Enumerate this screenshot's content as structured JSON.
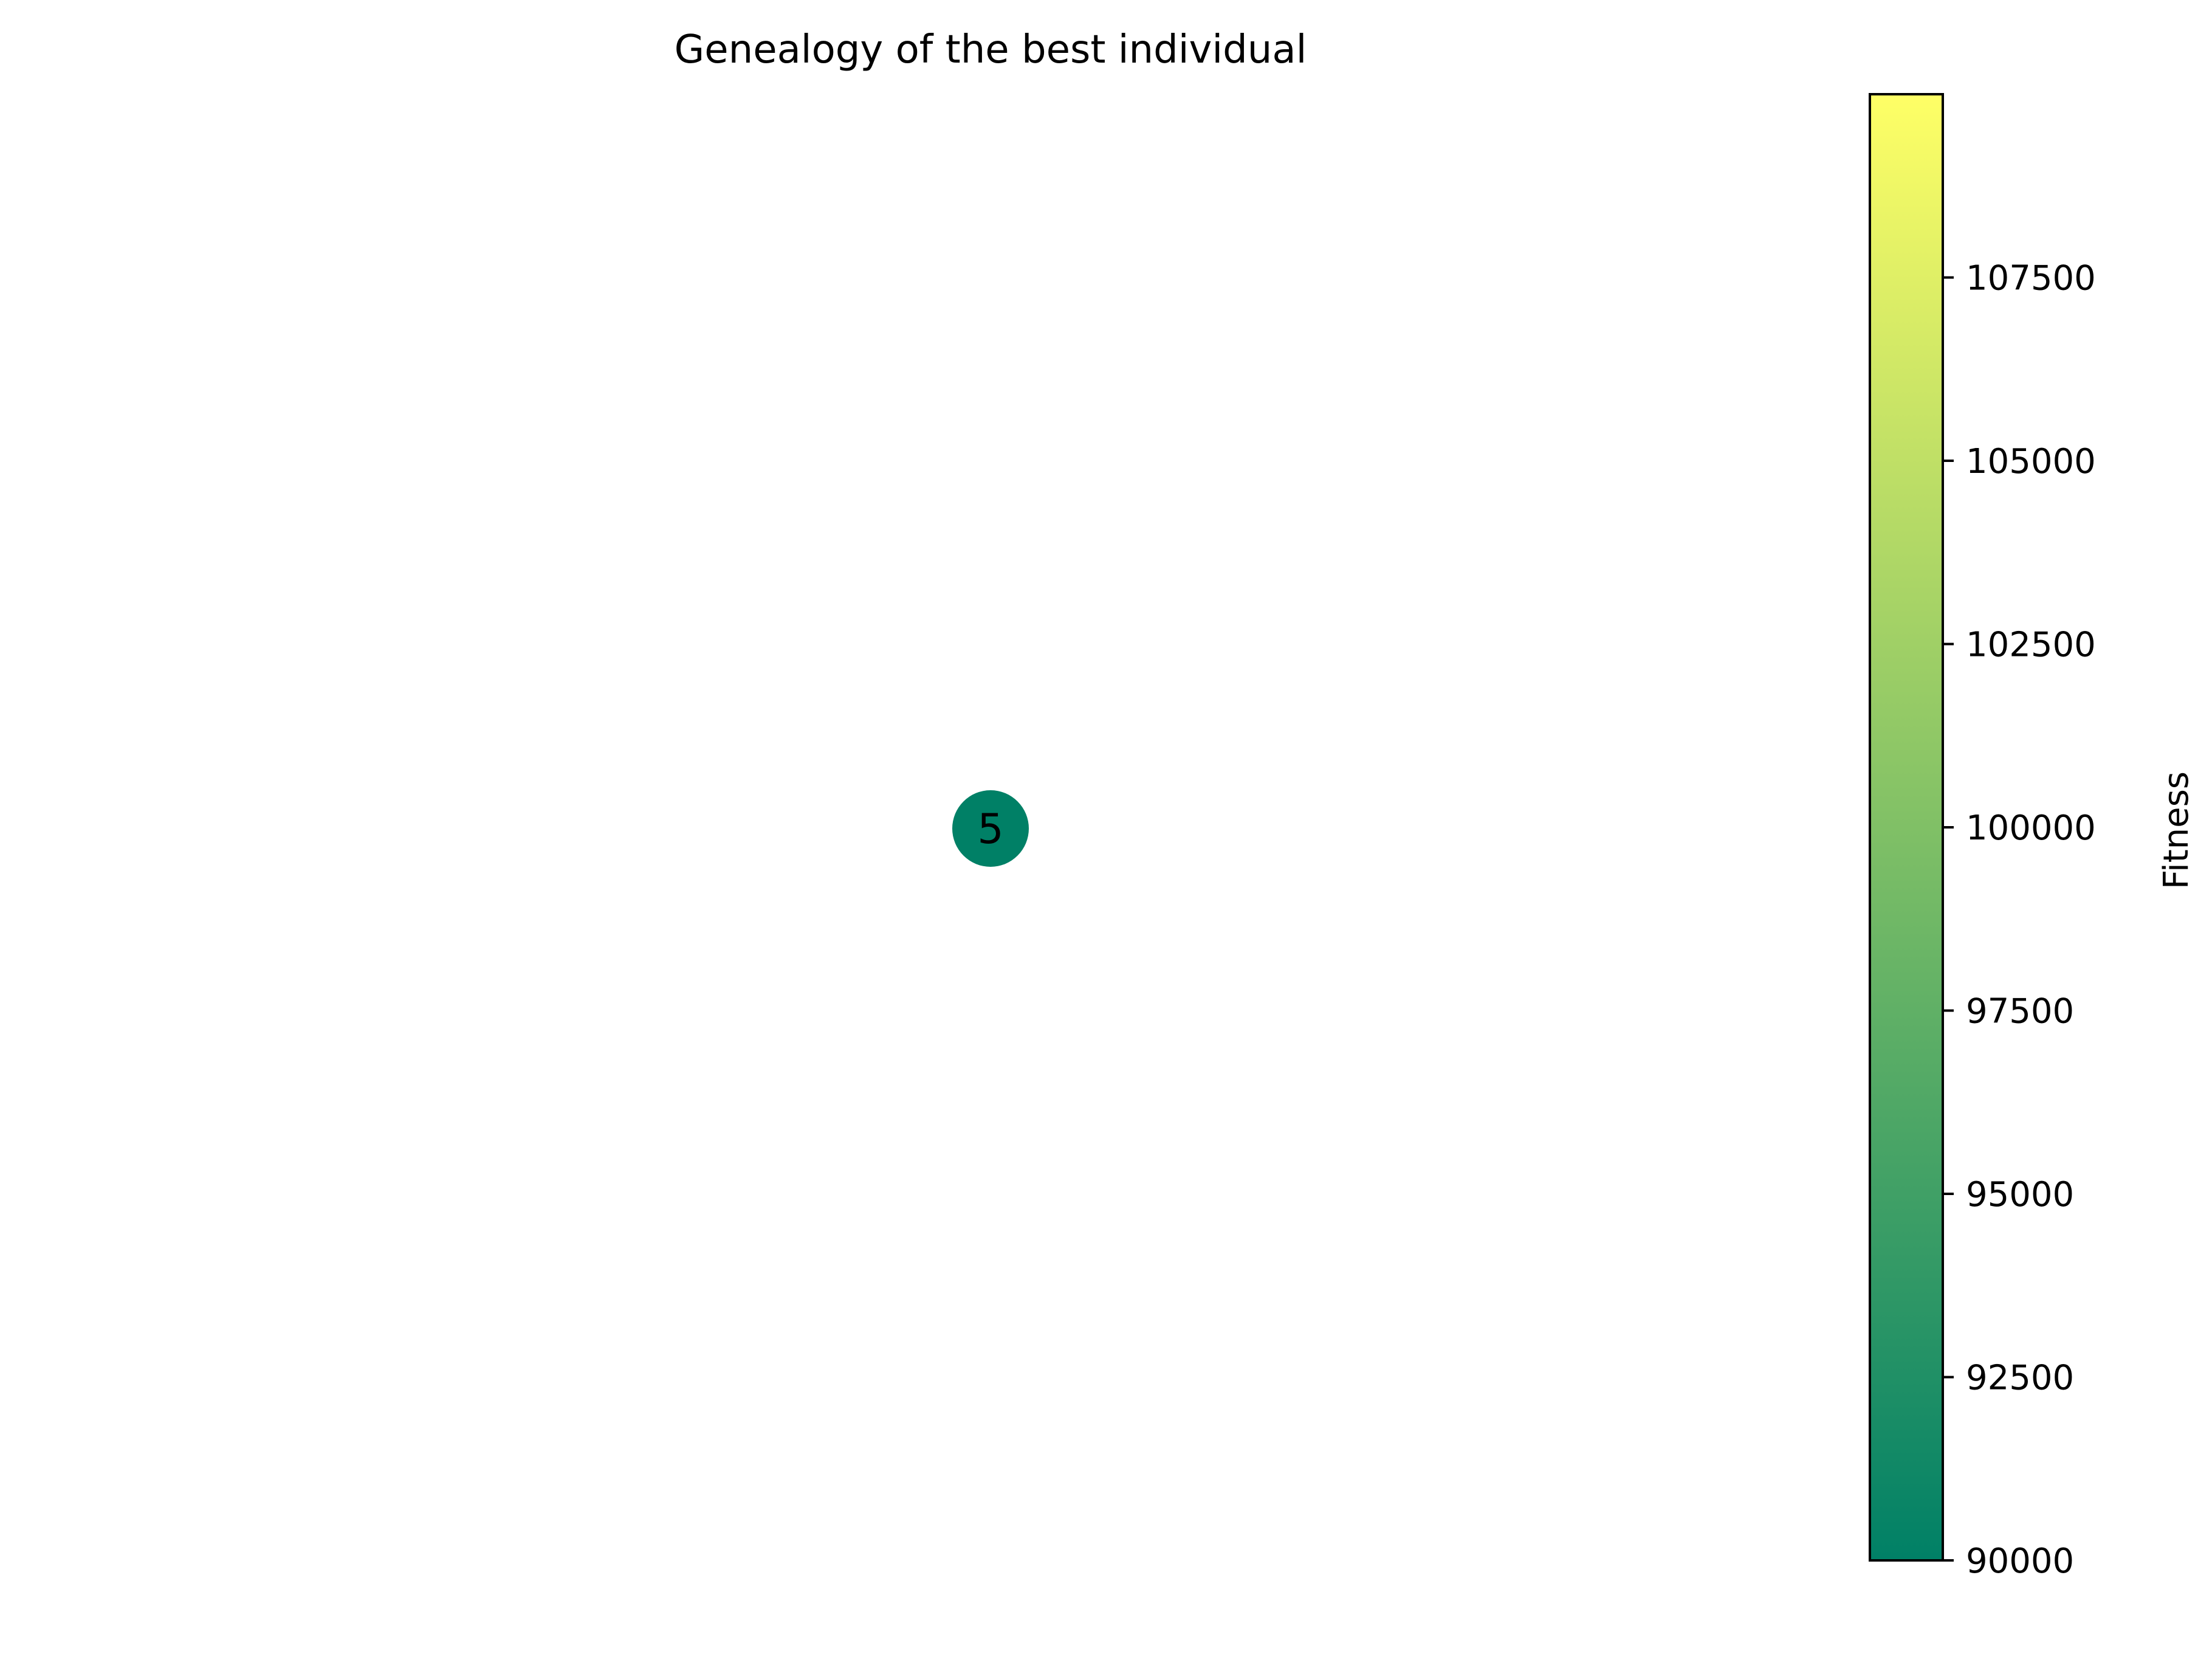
{
  "chart_data": {
    "type": "scatter",
    "title": "Genealogy of the best individual",
    "nodes": [
      {
        "label": "5",
        "fitness": 90000
      }
    ],
    "colorbar": {
      "label": "Fitness",
      "range": [
        90000,
        110000
      ],
      "ticks": [
        90000,
        92500,
        95000,
        97500,
        100000,
        102500,
        105000,
        107500
      ],
      "tick_labels": [
        "90000",
        "92500",
        "95000",
        "97500",
        "100000",
        "102500",
        "105000",
        "107500"
      ],
      "colormap_stops": [
        "#008066",
        "#80c066",
        "#ffff66"
      ]
    }
  }
}
